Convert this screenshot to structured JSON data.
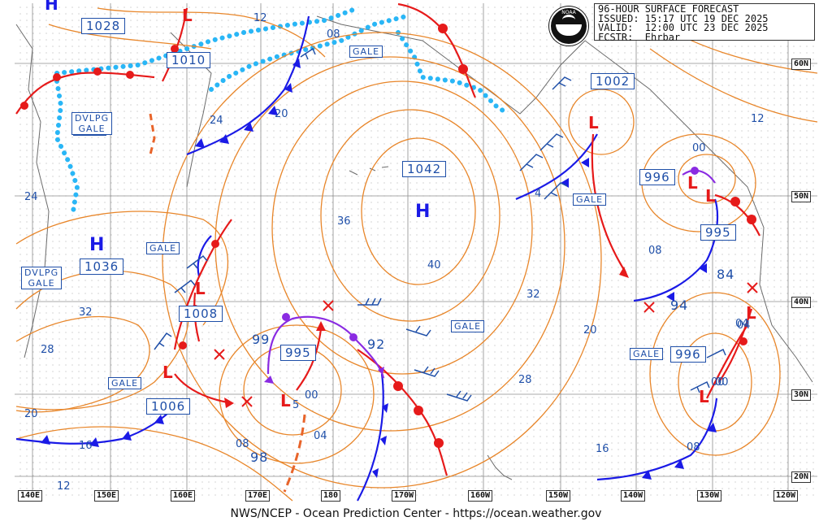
{
  "header": {
    "line1": "96-HOUR SURFACE FORECAST",
    "line2": "ISSUED: 15:17 UTC 19 DEC 2025",
    "line3": "VALID:  12:00 UTC 23 DEC 2025",
    "line4": "FCSTR:  Ehrbar",
    "logo_text": "NOAA"
  },
  "footer": "NWS/NCEP - Ocean Prediction Center - https://ocean.weather.gov",
  "longitude_labels": [
    "140E",
    "150E",
    "160E",
    "170E",
    "180",
    "170W",
    "160W",
    "150W",
    "140W",
    "130W",
    "120W"
  ],
  "latitude_labels": [
    "60N",
    "50N",
    "40N",
    "30N",
    "20N"
  ],
  "pressure_centers": [
    {
      "type": "H",
      "value": "1028"
    },
    {
      "type": "H",
      "value": "1042"
    },
    {
      "type": "H",
      "value": "1036"
    },
    {
      "type": "L",
      "value": "1002"
    },
    {
      "type": "L",
      "value": "996"
    },
    {
      "type": "L",
      "value": "1008"
    },
    {
      "type": "L",
      "value": "1006"
    },
    {
      "type": "L",
      "value": "995"
    },
    {
      "type": "L",
      "value": "996"
    }
  ],
  "box_labels": [
    "1028",
    "1010",
    "1042",
    "1036",
    "1008",
    "1006",
    "995",
    "1002",
    "996",
    "995",
    "996"
  ],
  "plain_labels": [
    "12",
    "08",
    "20",
    "24",
    "24",
    "36",
    "40",
    "32",
    "28",
    "20",
    "16",
    "08",
    "12",
    "28",
    "32",
    "20",
    "12",
    "08",
    "04",
    "00",
    "00",
    "00",
    "04",
    "08",
    "99",
    "92",
    "94",
    "84",
    "98",
    "4",
    "16",
    "00",
    "04",
    "5"
  ],
  "warnings": [
    "GALE",
    "GALE",
    "GALE",
    "GALE",
    "GALE",
    "GALE",
    "GALE"
  ],
  "developing": [
    {
      "line1": "DVLPG",
      "line2": "GALE"
    },
    {
      "line1": "DVLPG",
      "line2": "GALE"
    }
  ],
  "colors": {
    "isobar": "#e8862a",
    "cold_front": "#1a1ae6",
    "warm_front": "#e61a1a",
    "occluded": "#8a2be2",
    "ice": "#29b6f6",
    "label": "#1f4fa8",
    "grid": "#9a9a9a"
  }
}
